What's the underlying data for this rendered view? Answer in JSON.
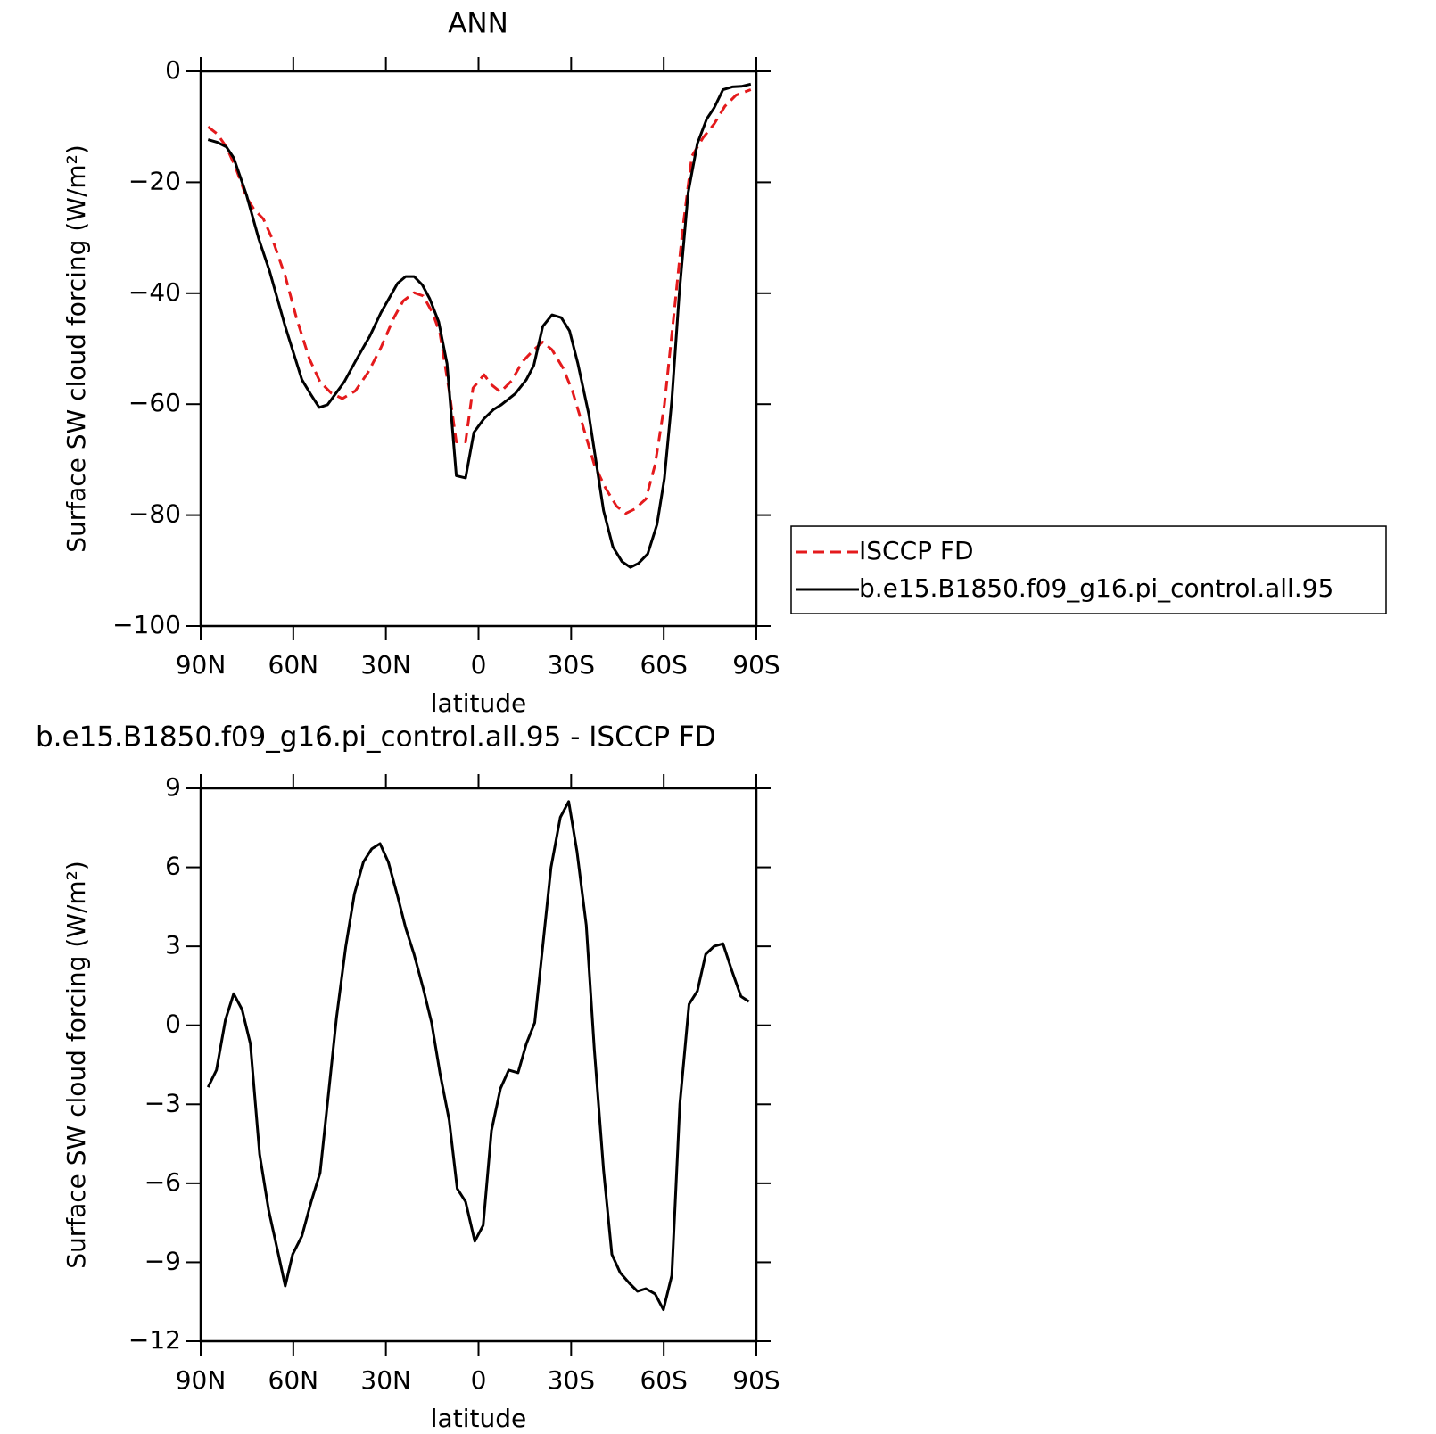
{
  "chart_data": [
    {
      "type": "line",
      "title": "ANN",
      "xlabel": "latitude",
      "ylabel": "Surface SW cloud forcing (W/m²)",
      "xlim": [
        90,
        -90
      ],
      "xticks": [
        {
          "value": 90,
          "label": "90N"
        },
        {
          "value": 60,
          "label": "60N"
        },
        {
          "value": 30,
          "label": "30N"
        },
        0,
        {
          "value": -30,
          "label": "30S"
        },
        {
          "value": -60,
          "label": "60S"
        },
        {
          "value": -90,
          "label": "90S"
        }
      ],
      "ylim": [
        -100,
        0
      ],
      "yticks": [
        {
          "value": -100,
          "label": "−100"
        },
        {
          "value": -80,
          "label": "−80"
        },
        {
          "value": -60,
          "label": "−60"
        },
        {
          "value": -40,
          "label": "−40"
        },
        {
          "value": -20,
          "label": "−20"
        },
        0
      ],
      "legend": "right",
      "series": [
        {
          "name": "ISCCP FD",
          "color": "#e41a1c",
          "style": "dashed",
          "x": [
            87.6,
            84.6,
            81.7,
            78.7,
            75.1,
            72.7,
            69.7,
            66.8,
            62.6,
            59,
            54.8,
            51.3,
            47.7,
            44.1,
            39.9,
            35.8,
            31.6,
            27.4,
            24.4,
            20.9,
            17.9,
            14.9,
            12.5,
            9.5,
            7.2,
            4.2,
            1.8,
            -1.8,
            -4.2,
            -7.1,
            -10.7,
            -14.3,
            -17.9,
            -20.8,
            -23.8,
            -27.4,
            -30.4,
            -34,
            -37.5,
            -41.1,
            -44.7,
            -47.7,
            -50.6,
            -54.2,
            -57.2,
            -60.2,
            -63.2,
            -66.1,
            -69.1,
            -72.7,
            -76.3,
            -79.8,
            -83.4,
            -88.2
          ],
          "values": [
            -10,
            -11.3,
            -13.6,
            -17.3,
            -22.8,
            -24.9,
            -26.6,
            -30.2,
            -36.9,
            -44.4,
            -51.8,
            -56,
            -58,
            -59,
            -57.6,
            -54.3,
            -49.8,
            -44.4,
            -41.4,
            -39.9,
            -40.5,
            -43.5,
            -47.2,
            -57.6,
            -66.8,
            -66.8,
            -57.1,
            -54.7,
            -56.5,
            -57.8,
            -55.8,
            -52.3,
            -50.2,
            -48.8,
            -50.2,
            -53.5,
            -57.6,
            -64.3,
            -70.9,
            -75.1,
            -78.4,
            -79.7,
            -78.9,
            -77.1,
            -70.9,
            -60.1,
            -44.4,
            -28.6,
            -15.3,
            -12,
            -9.5,
            -6.3,
            -4.3,
            -3.3
          ]
        },
        {
          "name": "b.e15.B1850.f09_g16.pi_control.all.95",
          "color": "#000000",
          "style": "solid",
          "x": [
            87.6,
            84.6,
            81.7,
            79.3,
            75.1,
            71.2,
            67.7,
            62.6,
            57.2,
            54.5,
            51.6,
            48.9,
            43.5,
            39.9,
            35.2,
            31.6,
            26.2,
            23.6,
            20.9,
            18.2,
            15.8,
            12.9,
            10.2,
            7.2,
            4.2,
            1.5,
            -1.8,
            -4.8,
            -7.4,
            -11.9,
            -15.5,
            -17.9,
            -20.8,
            -23.8,
            -26.8,
            -29.5,
            -32.2,
            -35.7,
            -40.5,
            -43.5,
            -46.5,
            -49.2,
            -51.8,
            -54.8,
            -57.8,
            -60.2,
            -62.6,
            -65,
            -67.9,
            -70.9,
            -73.9,
            -76.3,
            -79.2,
            -82.2,
            -85.2,
            -88.2
          ],
          "values": [
            -12.3,
            -12.8,
            -13.6,
            -15.6,
            -22.4,
            -30.2,
            -36,
            -46,
            -55.6,
            -58.1,
            -60.6,
            -60.1,
            -56,
            -52.3,
            -47.7,
            -43.5,
            -38.2,
            -37,
            -37,
            -38.5,
            -41,
            -45.2,
            -52.7,
            -72.9,
            -73.3,
            -65.1,
            -62.6,
            -61,
            -60.1,
            -58.1,
            -55.6,
            -53,
            -46,
            -43.9,
            -44.4,
            -46.8,
            -52.7,
            -61.8,
            -79.2,
            -85.7,
            -88.4,
            -89.4,
            -88.7,
            -87,
            -81.7,
            -73.4,
            -59.3,
            -40.2,
            -21.9,
            -13,
            -8.6,
            -6.6,
            -3.3,
            -2.8,
            -2.7,
            -2.3
          ]
        }
      ]
    },
    {
      "type": "line",
      "title": "b.e15.B1850.f09_g16.pi_control.all.95 - ISCCP FD",
      "xlabel": "latitude",
      "ylabel": "Surface SW cloud forcing (W/m²)",
      "xlim": [
        90,
        -90
      ],
      "xticks": [
        {
          "value": 90,
          "label": "90N"
        },
        {
          "value": 60,
          "label": "60N"
        },
        {
          "value": 30,
          "label": "30N"
        },
        0,
        {
          "value": -30,
          "label": "30S"
        },
        {
          "value": -60,
          "label": "60S"
        },
        {
          "value": -90,
          "label": "90S"
        }
      ],
      "ylim": [
        -12,
        9
      ],
      "yticks": [
        {
          "value": -12,
          "label": "−12"
        },
        {
          "value": -9,
          "label": "−9"
        },
        {
          "value": -6,
          "label": "−6"
        },
        {
          "value": -3,
          "label": "−3"
        },
        0,
        3,
        6,
        9
      ],
      "series": [
        {
          "color": "#000000",
          "style": "solid",
          "x": [
            87.6,
            84.9,
            82,
            79.3,
            76.6,
            73.9,
            70.9,
            68,
            65,
            62.6,
            60.2,
            57.2,
            54.2,
            51.3,
            48.6,
            46,
            43,
            40.2,
            37.3,
            34.6,
            31.9,
            29.2,
            26.2,
            23.6,
            20.9,
            17.9,
            15.2,
            12.5,
            9.5,
            6.9,
            4.2,
            1.2,
            -1.5,
            -4.2,
            -7.1,
            -9.8,
            -12.8,
            -15.5,
            -18.2,
            -20.8,
            -23.5,
            -26.5,
            -29.2,
            -31.9,
            -34.9,
            -37.5,
            -40.5,
            -43.2,
            -45.9,
            -48.9,
            -51.5,
            -54.2,
            -57.2,
            -59.9,
            -62.6,
            -65.2,
            -68.2,
            -70.9,
            -73.6,
            -76.3,
            -79.2,
            -82,
            -85,
            -87.6
          ],
          "values": [
            -2.35,
            -1.7,
            0.2,
            1.2,
            0.6,
            -0.7,
            -4.9,
            -7,
            -8.6,
            -9.9,
            -8.7,
            -8,
            -6.7,
            -5.6,
            -2.6,
            0.3,
            3,
            5,
            6.2,
            6.7,
            6.9,
            6.2,
            4.9,
            3.7,
            2.7,
            1.4,
            0.1,
            -1.8,
            -3.6,
            -6.2,
            -6.7,
            -8.2,
            -7.6,
            -4,
            -2.4,
            -1.7,
            -1.8,
            -0.7,
            0.1,
            3,
            6,
            7.9,
            8.5,
            6.6,
            3.8,
            -0.9,
            -5.5,
            -8.7,
            -9.4,
            -9.8,
            -10.1,
            -10,
            -10.2,
            -10.8,
            -9.5,
            -3,
            0.8,
            1.3,
            2.7,
            3,
            3.1,
            2.1,
            1.1,
            0.9
          ]
        }
      ]
    }
  ]
}
